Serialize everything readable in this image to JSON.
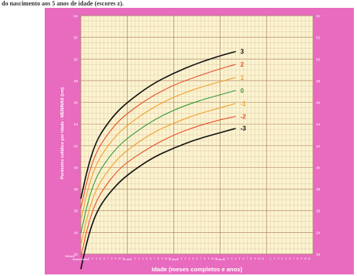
{
  "caption": "do nascimento aos 5 anos de idade (escores z).",
  "chart_data": {
    "type": "line",
    "ylabel": "Perímetro cefálico por idade - MENINAS (cm)",
    "xlabel": "Idade (meses completos e anos)",
    "ylim": [
      32,
      54
    ],
    "yticks": [
      32,
      34,
      36,
      38,
      40,
      42,
      44,
      46,
      48,
      50,
      52,
      54
    ],
    "xlim": [
      0,
      60
    ],
    "x_major_labels": [
      {
        "x": 0,
        "label": "Nascimento"
      },
      {
        "x": 12,
        "label": "1 ano"
      },
      {
        "x": 24,
        "label": "2 anos"
      },
      {
        "x": 36,
        "label": "3 anos"
      }
    ],
    "x_corner_label": "Meses",
    "grid": true,
    "legend": "right-labels",
    "x": [
      0,
      2,
      4,
      6,
      9,
      12,
      18,
      24,
      30,
      36,
      40
    ],
    "series": [
      {
        "name": "3",
        "color": "#111111",
        "values": [
          37.1,
          40.3,
          42.4,
          43.6,
          45.0,
          46.0,
          47.6,
          48.7,
          49.6,
          50.3,
          50.7
        ]
      },
      {
        "name": "2",
        "color": "#e8502a",
        "values": [
          36.2,
          39.4,
          41.4,
          42.6,
          44.0,
          45.0,
          46.5,
          47.6,
          48.4,
          49.1,
          49.5
        ]
      },
      {
        "name": "1",
        "color": "#f0a030",
        "values": [
          35.1,
          38.3,
          40.3,
          41.5,
          42.9,
          43.9,
          45.4,
          46.5,
          47.3,
          47.9,
          48.3
        ]
      },
      {
        "name": "0",
        "color": "#3a9a3a",
        "values": [
          33.9,
          37.1,
          39.1,
          40.3,
          41.7,
          42.7,
          44.2,
          45.3,
          46.1,
          46.7,
          47.1
        ]
      },
      {
        "name": "-1",
        "color": "#f0a030",
        "values": [
          32.8,
          36.0,
          38.0,
          39.2,
          40.6,
          41.6,
          43.1,
          44.1,
          44.9,
          45.5,
          45.9
        ]
      },
      {
        "name": "-2",
        "color": "#e8502a",
        "values": [
          31.7,
          34.9,
          36.9,
          38.1,
          39.5,
          40.5,
          41.9,
          43.0,
          43.8,
          44.4,
          44.7
        ]
      },
      {
        "name": "-3",
        "color": "#111111",
        "values": [
          30.6,
          33.8,
          35.8,
          37.0,
          38.3,
          39.3,
          40.8,
          41.8,
          42.6,
          43.2,
          43.6
        ]
      }
    ]
  }
}
